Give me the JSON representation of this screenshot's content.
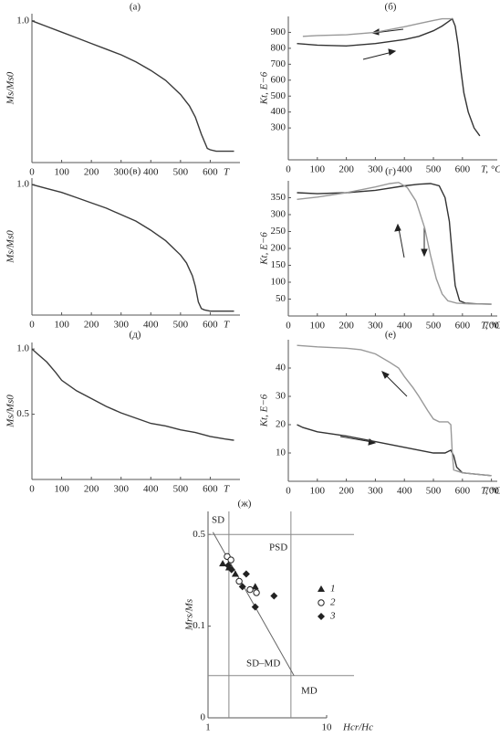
{
  "chart_data": [
    {
      "type": "line",
      "label": "(а)",
      "ylabel": "Ms/Ms0",
      "xlabel": "T",
      "xlim": [
        0,
        700
      ],
      "xticks": [
        0,
        100,
        200,
        300,
        400,
        500,
        600
      ],
      "ylim": [
        0,
        1.05
      ],
      "yticks": [
        {
          "value": 1,
          "label": "1.0"
        }
      ],
      "series": [
        {
          "color": "#3a3a3a",
          "x": [
            0,
            50,
            100,
            150,
            200,
            250,
            300,
            350,
            400,
            450,
            500,
            530,
            550,
            570,
            590,
            600,
            620,
            650,
            680
          ],
          "values": [
            1,
            0.96,
            0.92,
            0.88,
            0.84,
            0.8,
            0.76,
            0.71,
            0.65,
            0.58,
            0.48,
            0.4,
            0.32,
            0.2,
            0.1,
            0.09,
            0.08,
            0.08,
            0.08
          ]
        }
      ]
    },
    {
      "type": "line",
      "label": "(б)",
      "ylabel": "Kt, E−6",
      "xlabel": "T, °C",
      "xlim": [
        0,
        720
      ],
      "xticks": [
        0,
        100,
        200,
        300,
        400,
        500,
        600
      ],
      "ylim": [
        100,
        1000
      ],
      "yticks": [
        300,
        400,
        500,
        600,
        700,
        800,
        900
      ],
      "series": [
        {
          "color": "#333333",
          "x": [
            30,
            100,
            200,
            300,
            400,
            450,
            500,
            530,
            550,
            565,
            575,
            585,
            595,
            605,
            620,
            640,
            660
          ],
          "values": [
            830,
            820,
            815,
            830,
            855,
            875,
            910,
            940,
            965,
            985,
            940,
            820,
            660,
            520,
            400,
            300,
            250
          ]
        },
        {
          "color": "#999999",
          "x": [
            50,
            100,
            200,
            300,
            400,
            450,
            500,
            530,
            550,
            565
          ],
          "values": [
            875,
            880,
            885,
            900,
            935,
            955,
            975,
            985,
            985,
            985
          ]
        }
      ]
    },
    {
      "type": "line",
      "label": "(в)",
      "ylabel": "Ms/Ms0",
      "xlabel": "T",
      "xlim": [
        0,
        700
      ],
      "xticks": [
        0,
        100,
        200,
        300,
        400,
        500,
        600
      ],
      "ylim": [
        0,
        1.05
      ],
      "yticks": [
        {
          "value": 1,
          "label": "1.0"
        }
      ],
      "series": [
        {
          "color": "#3a3a3a",
          "x": [
            0,
            50,
            100,
            150,
            200,
            250,
            300,
            350,
            400,
            450,
            500,
            520,
            540,
            550,
            560,
            570,
            580,
            600,
            650,
            680
          ],
          "values": [
            1,
            0.97,
            0.94,
            0.9,
            0.86,
            0.82,
            0.77,
            0.72,
            0.65,
            0.57,
            0.46,
            0.4,
            0.3,
            0.22,
            0.1,
            0.05,
            0.04,
            0.03,
            0.03,
            0.03
          ]
        }
      ]
    },
    {
      "type": "line",
      "label": "(г)",
      "ylabel": "Kt, E−6",
      "xlabel": "T, °C",
      "xlim": [
        0,
        720
      ],
      "xticks": [
        0,
        100,
        200,
        300,
        400,
        500,
        600,
        700
      ],
      "ylim": [
        0,
        400
      ],
      "yticks": [
        50,
        100,
        150,
        200,
        250,
        300,
        350
      ],
      "series": [
        {
          "color": "#333333",
          "x": [
            30,
            100,
            200,
            300,
            400,
            450,
            490,
            520,
            540,
            555,
            565,
            575,
            590,
            610,
            650,
            700
          ],
          "values": [
            365,
            362,
            365,
            372,
            385,
            390,
            392,
            385,
            350,
            280,
            180,
            90,
            45,
            38,
            36,
            35
          ]
        },
        {
          "color": "#999999",
          "x": [
            30,
            100,
            200,
            300,
            350,
            380,
            410,
            440,
            470,
            490,
            510,
            530,
            550,
            580,
            620,
            700
          ],
          "values": [
            345,
            352,
            365,
            382,
            392,
            395,
            380,
            340,
            260,
            180,
            110,
            65,
            45,
            38,
            36,
            35
          ]
        }
      ]
    },
    {
      "type": "line",
      "label": "(д)",
      "ylabel": "Ms/Ms0",
      "xlabel": "T",
      "xlim": [
        0,
        700
      ],
      "xticks": [
        0,
        100,
        200,
        300,
        400,
        500,
        600
      ],
      "ylim": [
        0,
        1.05
      ],
      "yticks": [
        0.5,
        {
          "value": 1,
          "label": "1.0"
        }
      ],
      "series": [
        {
          "color": "#3a3a3a",
          "x": [
            0,
            20,
            50,
            80,
            100,
            150,
            200,
            250,
            300,
            350,
            400,
            450,
            500,
            550,
            600,
            650,
            680
          ],
          "values": [
            1,
            0.96,
            0.9,
            0.82,
            0.76,
            0.68,
            0.62,
            0.56,
            0.51,
            0.47,
            0.43,
            0.41,
            0.38,
            0.36,
            0.33,
            0.31,
            0.3
          ]
        }
      ]
    },
    {
      "type": "line",
      "label": "(е)",
      "ylabel": "Kt, E−6",
      "xlabel": "T, °C",
      "xlim": [
        0,
        720
      ],
      "xticks": [
        0,
        100,
        200,
        300,
        400,
        500,
        600,
        700
      ],
      "ylim": [
        0,
        50
      ],
      "yticks": [
        10,
        20,
        30,
        40
      ],
      "series": [
        {
          "color": "#333333",
          "x": [
            30,
            50,
            100,
            200,
            300,
            400,
            450,
            500,
            540,
            560,
            570,
            580,
            600,
            650,
            700
          ],
          "values": [
            20,
            19,
            17.5,
            16,
            14,
            12,
            11,
            10,
            10,
            11,
            9,
            5,
            3,
            2.5,
            2
          ]
        },
        {
          "color": "#999999",
          "x": [
            30,
            100,
            200,
            250,
            300,
            350,
            380,
            400,
            430,
            450,
            480,
            500,
            520,
            550,
            560,
            565,
            570,
            600,
            650,
            700
          ],
          "values": [
            48,
            47.5,
            47,
            46.5,
            45,
            42,
            40,
            37,
            33,
            30,
            25,
            22,
            21,
            21,
            20,
            10,
            4,
            3,
            2.5,
            2
          ]
        }
      ]
    },
    {
      "type": "scatter",
      "label": "(ж)",
      "ylabel": "Mrs/Ms",
      "xlabel": "Hcr/Hc",
      "xlog": true,
      "ylog": true,
      "xlim": [
        1,
        10
      ],
      "xticks": [
        1,
        10
      ],
      "ylim": [
        0.02,
        0.75
      ],
      "yticks": [
        {
          "value": 0.02,
          "label": "0"
        },
        0.1,
        0.5
      ],
      "reference_lines": {
        "x": [
          1.5,
          5
        ],
        "y": [
          0.5,
          0.042
        ]
      },
      "trend": {
        "x": [
          1.1,
          5.3
        ],
        "values": [
          0.52,
          0.042
        ]
      },
      "regions": [
        "SD",
        "PSD",
        "SD–MD",
        "MD"
      ],
      "series": [
        {
          "name": "1",
          "marker": "triangle",
          "color": "#222222",
          "x": [
            1.33,
            1.5,
            1.7,
            2.5
          ],
          "values": [
            0.3,
            0.28,
            0.25,
            0.2
          ]
        },
        {
          "name": "2",
          "marker": "circle",
          "color": "#222222",
          "x": [
            1.45,
            1.56,
            1.83,
            2.26,
            2.56
          ],
          "values": [
            0.34,
            0.32,
            0.22,
            0.19,
            0.18
          ]
        },
        {
          "name": "3",
          "marker": "diamond",
          "color": "#222222",
          "x": [
            1.48,
            1.58,
            2.1,
            1.95,
            2.5,
            3.6
          ],
          "values": [
            0.29,
            0.27,
            0.25,
            0.2,
            0.14,
            0.17
          ]
        }
      ]
    }
  ]
}
